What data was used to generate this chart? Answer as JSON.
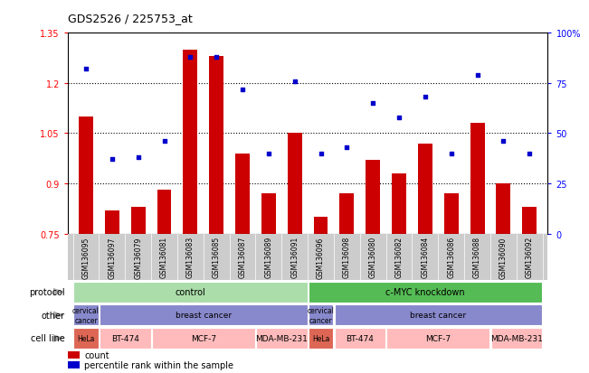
{
  "title": "GDS2526 / 225753_at",
  "samples": [
    "GSM136095",
    "GSM136097",
    "GSM136079",
    "GSM136081",
    "GSM136083",
    "GSM136085",
    "GSM136087",
    "GSM136089",
    "GSM136091",
    "GSM136096",
    "GSM136098",
    "GSM136080",
    "GSM136082",
    "GSM136084",
    "GSM136086",
    "GSM136088",
    "GSM136090",
    "GSM136092"
  ],
  "bar_values": [
    1.1,
    0.82,
    0.83,
    0.88,
    1.3,
    1.28,
    0.99,
    0.87,
    1.05,
    0.8,
    0.87,
    0.97,
    0.93,
    1.02,
    0.87,
    1.08,
    0.9,
    0.83
  ],
  "scatter_values": [
    82,
    37,
    38,
    46,
    88,
    88,
    72,
    40,
    76,
    40,
    43,
    65,
    58,
    68,
    40,
    79,
    46,
    40
  ],
  "ylim_left": [
    0.75,
    1.35
  ],
  "ylim_right": [
    0,
    100
  ],
  "yticks_left": [
    0.75,
    0.9,
    1.05,
    1.2,
    1.35
  ],
  "yticks_right": [
    0,
    25,
    50,
    75,
    100
  ],
  "ytick_labels_left": [
    "0.75",
    "0.9",
    "1.05",
    "1.2",
    "1.35"
  ],
  "ytick_labels_right": [
    "0",
    "25",
    "50",
    "75",
    "100%"
  ],
  "bar_color": "#cc0000",
  "scatter_color": "#0000cc",
  "baseline": 0.75,
  "protocol_row": {
    "label": "protocol",
    "groups": [
      {
        "text": "control",
        "start": 0,
        "end": 9,
        "color": "#aaddaa"
      },
      {
        "text": "c-MYC knockdown",
        "start": 9,
        "end": 18,
        "color": "#55bb55"
      }
    ]
  },
  "other_row": {
    "label": "other",
    "groups": [
      {
        "text": "cervical\ncancer",
        "start": 0,
        "end": 1,
        "color": "#8888cc"
      },
      {
        "text": "breast cancer",
        "start": 1,
        "end": 9,
        "color": "#8888cc"
      },
      {
        "text": "cervical\ncancer",
        "start": 9,
        "end": 10,
        "color": "#8888cc"
      },
      {
        "text": "breast cancer",
        "start": 10,
        "end": 18,
        "color": "#8888cc"
      }
    ]
  },
  "cellline_row": {
    "label": "cell line",
    "groups": [
      {
        "text": "HeLa",
        "start": 0,
        "end": 1,
        "color": "#dd6655"
      },
      {
        "text": "BT-474",
        "start": 1,
        "end": 3,
        "color": "#ffbbbb"
      },
      {
        "text": "MCF-7",
        "start": 3,
        "end": 7,
        "color": "#ffbbbb"
      },
      {
        "text": "MDA-MB-231",
        "start": 7,
        "end": 9,
        "color": "#ffbbbb"
      },
      {
        "text": "HeLa",
        "start": 9,
        "end": 10,
        "color": "#dd6655"
      },
      {
        "text": "BT-474",
        "start": 10,
        "end": 12,
        "color": "#ffbbbb"
      },
      {
        "text": "MCF-7",
        "start": 12,
        "end": 16,
        "color": "#ffbbbb"
      },
      {
        "text": "MDA-MB-231",
        "start": 16,
        "end": 18,
        "color": "#ffbbbb"
      }
    ]
  },
  "legend_items": [
    {
      "color": "#cc0000",
      "label": "count",
      "marker": "square"
    },
    {
      "color": "#0000cc",
      "label": "percentile rank within the sample",
      "marker": "square"
    }
  ],
  "xtick_bg": "#cccccc",
  "fig_bg": "#ffffff"
}
